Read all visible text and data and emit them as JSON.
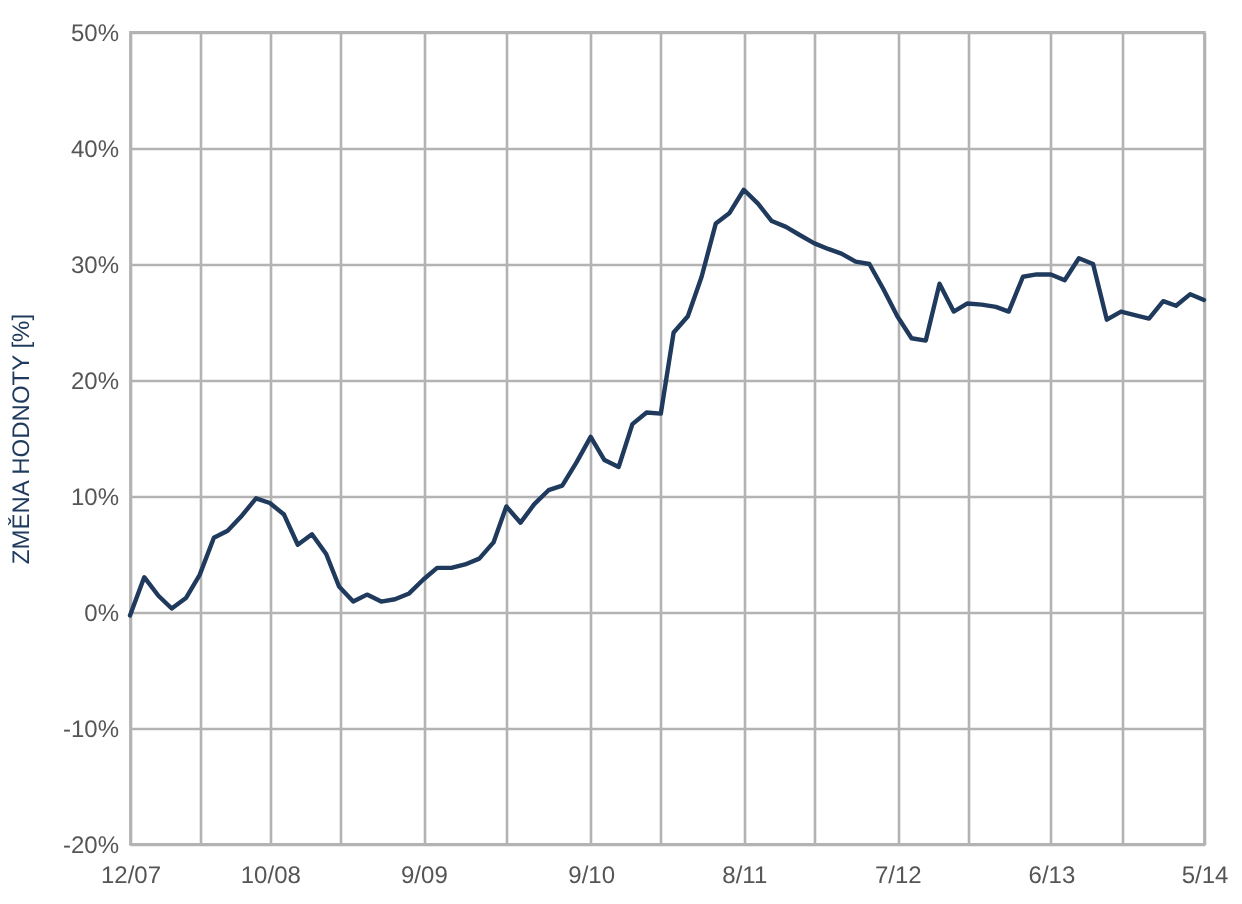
{
  "chart_data": {
    "type": "line",
    "ylabel": "ZMĚNA HODNOTY [%]",
    "x": [
      "2007-12",
      "2008-01",
      "2008-02",
      "2008-03",
      "2008-04",
      "2008-05",
      "2008-06",
      "2008-07",
      "2008-08",
      "2008-09",
      "2008-10",
      "2008-11",
      "2008-12",
      "2009-01",
      "2009-02",
      "2009-03",
      "2009-04",
      "2009-05",
      "2009-06",
      "2009-07",
      "2009-08",
      "2009-09",
      "2009-10",
      "2009-11",
      "2009-12",
      "2010-01",
      "2010-02",
      "2010-03",
      "2010-04",
      "2010-05",
      "2010-06",
      "2010-07",
      "2010-08",
      "2010-09",
      "2010-10",
      "2010-11",
      "2010-12",
      "2011-01",
      "2011-02",
      "2011-03",
      "2011-04",
      "2011-05",
      "2011-06",
      "2011-07",
      "2011-08",
      "2011-09",
      "2011-10",
      "2011-11",
      "2011-12",
      "2012-01",
      "2012-02",
      "2012-03",
      "2012-04",
      "2012-05",
      "2012-06",
      "2012-07",
      "2012-08",
      "2012-09",
      "2012-10",
      "2012-11",
      "2012-12",
      "2013-01",
      "2013-02",
      "2013-03",
      "2013-04",
      "2013-05",
      "2013-06",
      "2013-07",
      "2013-08",
      "2013-09",
      "2013-10",
      "2013-11",
      "2013-12",
      "2014-01",
      "2014-02",
      "2014-03",
      "2014-04",
      "2014-05"
    ],
    "series": [
      {
        "color": "#1f3a5c",
        "values": [
          -0.3,
          3.0,
          1.4,
          0.3,
          1.2,
          3.2,
          6.4,
          7.0,
          8.3,
          9.8,
          9.4,
          8.4,
          5.8,
          6.7,
          5.0,
          2.2,
          0.9,
          1.5,
          0.9,
          1.1,
          1.6,
          2.8,
          3.8,
          3.8,
          4.1,
          4.6,
          6.0,
          9.1,
          7.7,
          9.3,
          10.5,
          10.9,
          12.9,
          15.1,
          13.1,
          12.5,
          16.2,
          17.2,
          17.1,
          24.1,
          25.5,
          28.9,
          33.5,
          34.4,
          36.4,
          35.2,
          33.7,
          33.2,
          32.5,
          31.8,
          31.3,
          30.9,
          30.2,
          30.0,
          27.8,
          25.5,
          23.6,
          23.4,
          28.3,
          25.9,
          26.6,
          26.5,
          26.3,
          25.9,
          28.9,
          29.1,
          29.1,
          28.6,
          30.5,
          30.0,
          25.2,
          25.9,
          25.6,
          25.3,
          26.8,
          26.4,
          27.4,
          26.9
        ]
      }
    ],
    "xlim": [
      "2007-12",
      "2014-05"
    ],
    "xticks": [
      {
        "value": "2007-12",
        "label": "12/07"
      },
      {
        "value": "2008-05",
        "label": null
      },
      {
        "value": "2008-10",
        "label": "10/08"
      },
      {
        "value": "2009-03",
        "label": null
      },
      {
        "value": "2009-09",
        "label": "9/09"
      },
      {
        "value": "2010-03",
        "label": null
      },
      {
        "value": "2010-09",
        "label": "9/10"
      },
      {
        "value": "2011-02",
        "label": null
      },
      {
        "value": "2011-08",
        "label": "8/11"
      },
      {
        "value": "2012-01",
        "label": null
      },
      {
        "value": "2012-07",
        "label": "7/12"
      },
      {
        "value": "2012-12",
        "label": null
      },
      {
        "value": "2013-06",
        "label": "6/13"
      },
      {
        "value": "2013-11",
        "label": null
      },
      {
        "value": "2014-05",
        "label": "5/14"
      }
    ],
    "ylim": [
      -20,
      50
    ],
    "yticks": [
      {
        "value": -20,
        "label": "-20%"
      },
      {
        "value": -10,
        "label": "-10%"
      },
      {
        "value": 0,
        "label": "0%"
      },
      {
        "value": 10,
        "label": "10%"
      },
      {
        "value": 20,
        "label": "20%"
      },
      {
        "value": 30,
        "label": "30%"
      },
      {
        "value": 40,
        "label": "40%"
      },
      {
        "value": 50,
        "label": "50%"
      }
    ],
    "grid": true
  }
}
